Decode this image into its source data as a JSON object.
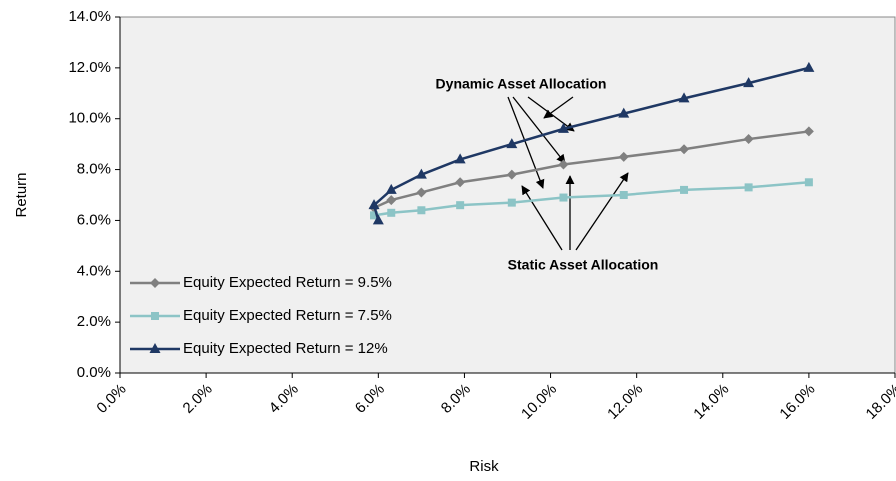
{
  "chart_data": {
    "type": "line",
    "xlabel": "Risk",
    "ylabel": "Return",
    "xlim": [
      0,
      18
    ],
    "ylim": [
      0,
      14
    ],
    "xticks": [
      {
        "value": 0,
        "label": "0.0%"
      },
      {
        "value": 2,
        "label": "2.0%"
      },
      {
        "value": 4,
        "label": "4.0%"
      },
      {
        "value": 6,
        "label": "6.0%"
      },
      {
        "value": 8,
        "label": "8.0%"
      },
      {
        "value": 10,
        "label": "10.0%"
      },
      {
        "value": 12,
        "label": "12.0%"
      },
      {
        "value": 14,
        "label": "14.0%"
      },
      {
        "value": 16,
        "label": "16.0%"
      },
      {
        "value": 18,
        "label": "18.0%"
      }
    ],
    "yticks": [
      {
        "value": 0,
        "label": "0.0%"
      },
      {
        "value": 2,
        "label": "2.0%"
      },
      {
        "value": 4,
        "label": "4.0%"
      },
      {
        "value": 6,
        "label": "6.0%"
      },
      {
        "value": 8,
        "label": "8.0%"
      },
      {
        "value": 10,
        "label": "10.0%"
      },
      {
        "value": 12,
        "label": "12.0%"
      },
      {
        "value": 14,
        "label": "14.0%"
      }
    ],
    "annotations": [
      "Dynamic Asset Allocation",
      "Static Asset Allocation"
    ],
    "legend": "lower left",
    "series": [
      {
        "name": "Equity Expected Return = 9.5%",
        "color": "#808080",
        "marker": "diamond",
        "x": [
          5.9,
          6.3,
          7.0,
          7.9,
          9.1,
          10.3,
          11.7,
          13.1,
          14.6,
          16.0
        ],
        "values": [
          6.5,
          6.8,
          7.1,
          7.5,
          7.8,
          8.2,
          8.5,
          8.8,
          9.2,
          9.5
        ]
      },
      {
        "name": "Equity Expected Return = 7.5%",
        "color": "#8cc4c6",
        "marker": "square",
        "x": [
          5.9,
          6.3,
          7.0,
          7.9,
          9.1,
          10.3,
          11.7,
          13.1,
          14.6,
          16.0
        ],
        "values": [
          6.2,
          6.3,
          6.4,
          6.6,
          6.7,
          6.9,
          7.0,
          7.2,
          7.3,
          7.5
        ]
      },
      {
        "name": "Equity Expected Return = 12%",
        "color": "#1f3864",
        "marker": "triangle",
        "x": [
          6.0,
          5.9,
          6.3,
          7.0,
          7.9,
          9.1,
          10.3,
          11.7,
          13.1,
          14.6,
          16.0
        ],
        "values": [
          6.0,
          6.6,
          7.2,
          7.8,
          8.4,
          9.0,
          9.6,
          10.2,
          10.8,
          11.4,
          12.0
        ]
      }
    ]
  }
}
